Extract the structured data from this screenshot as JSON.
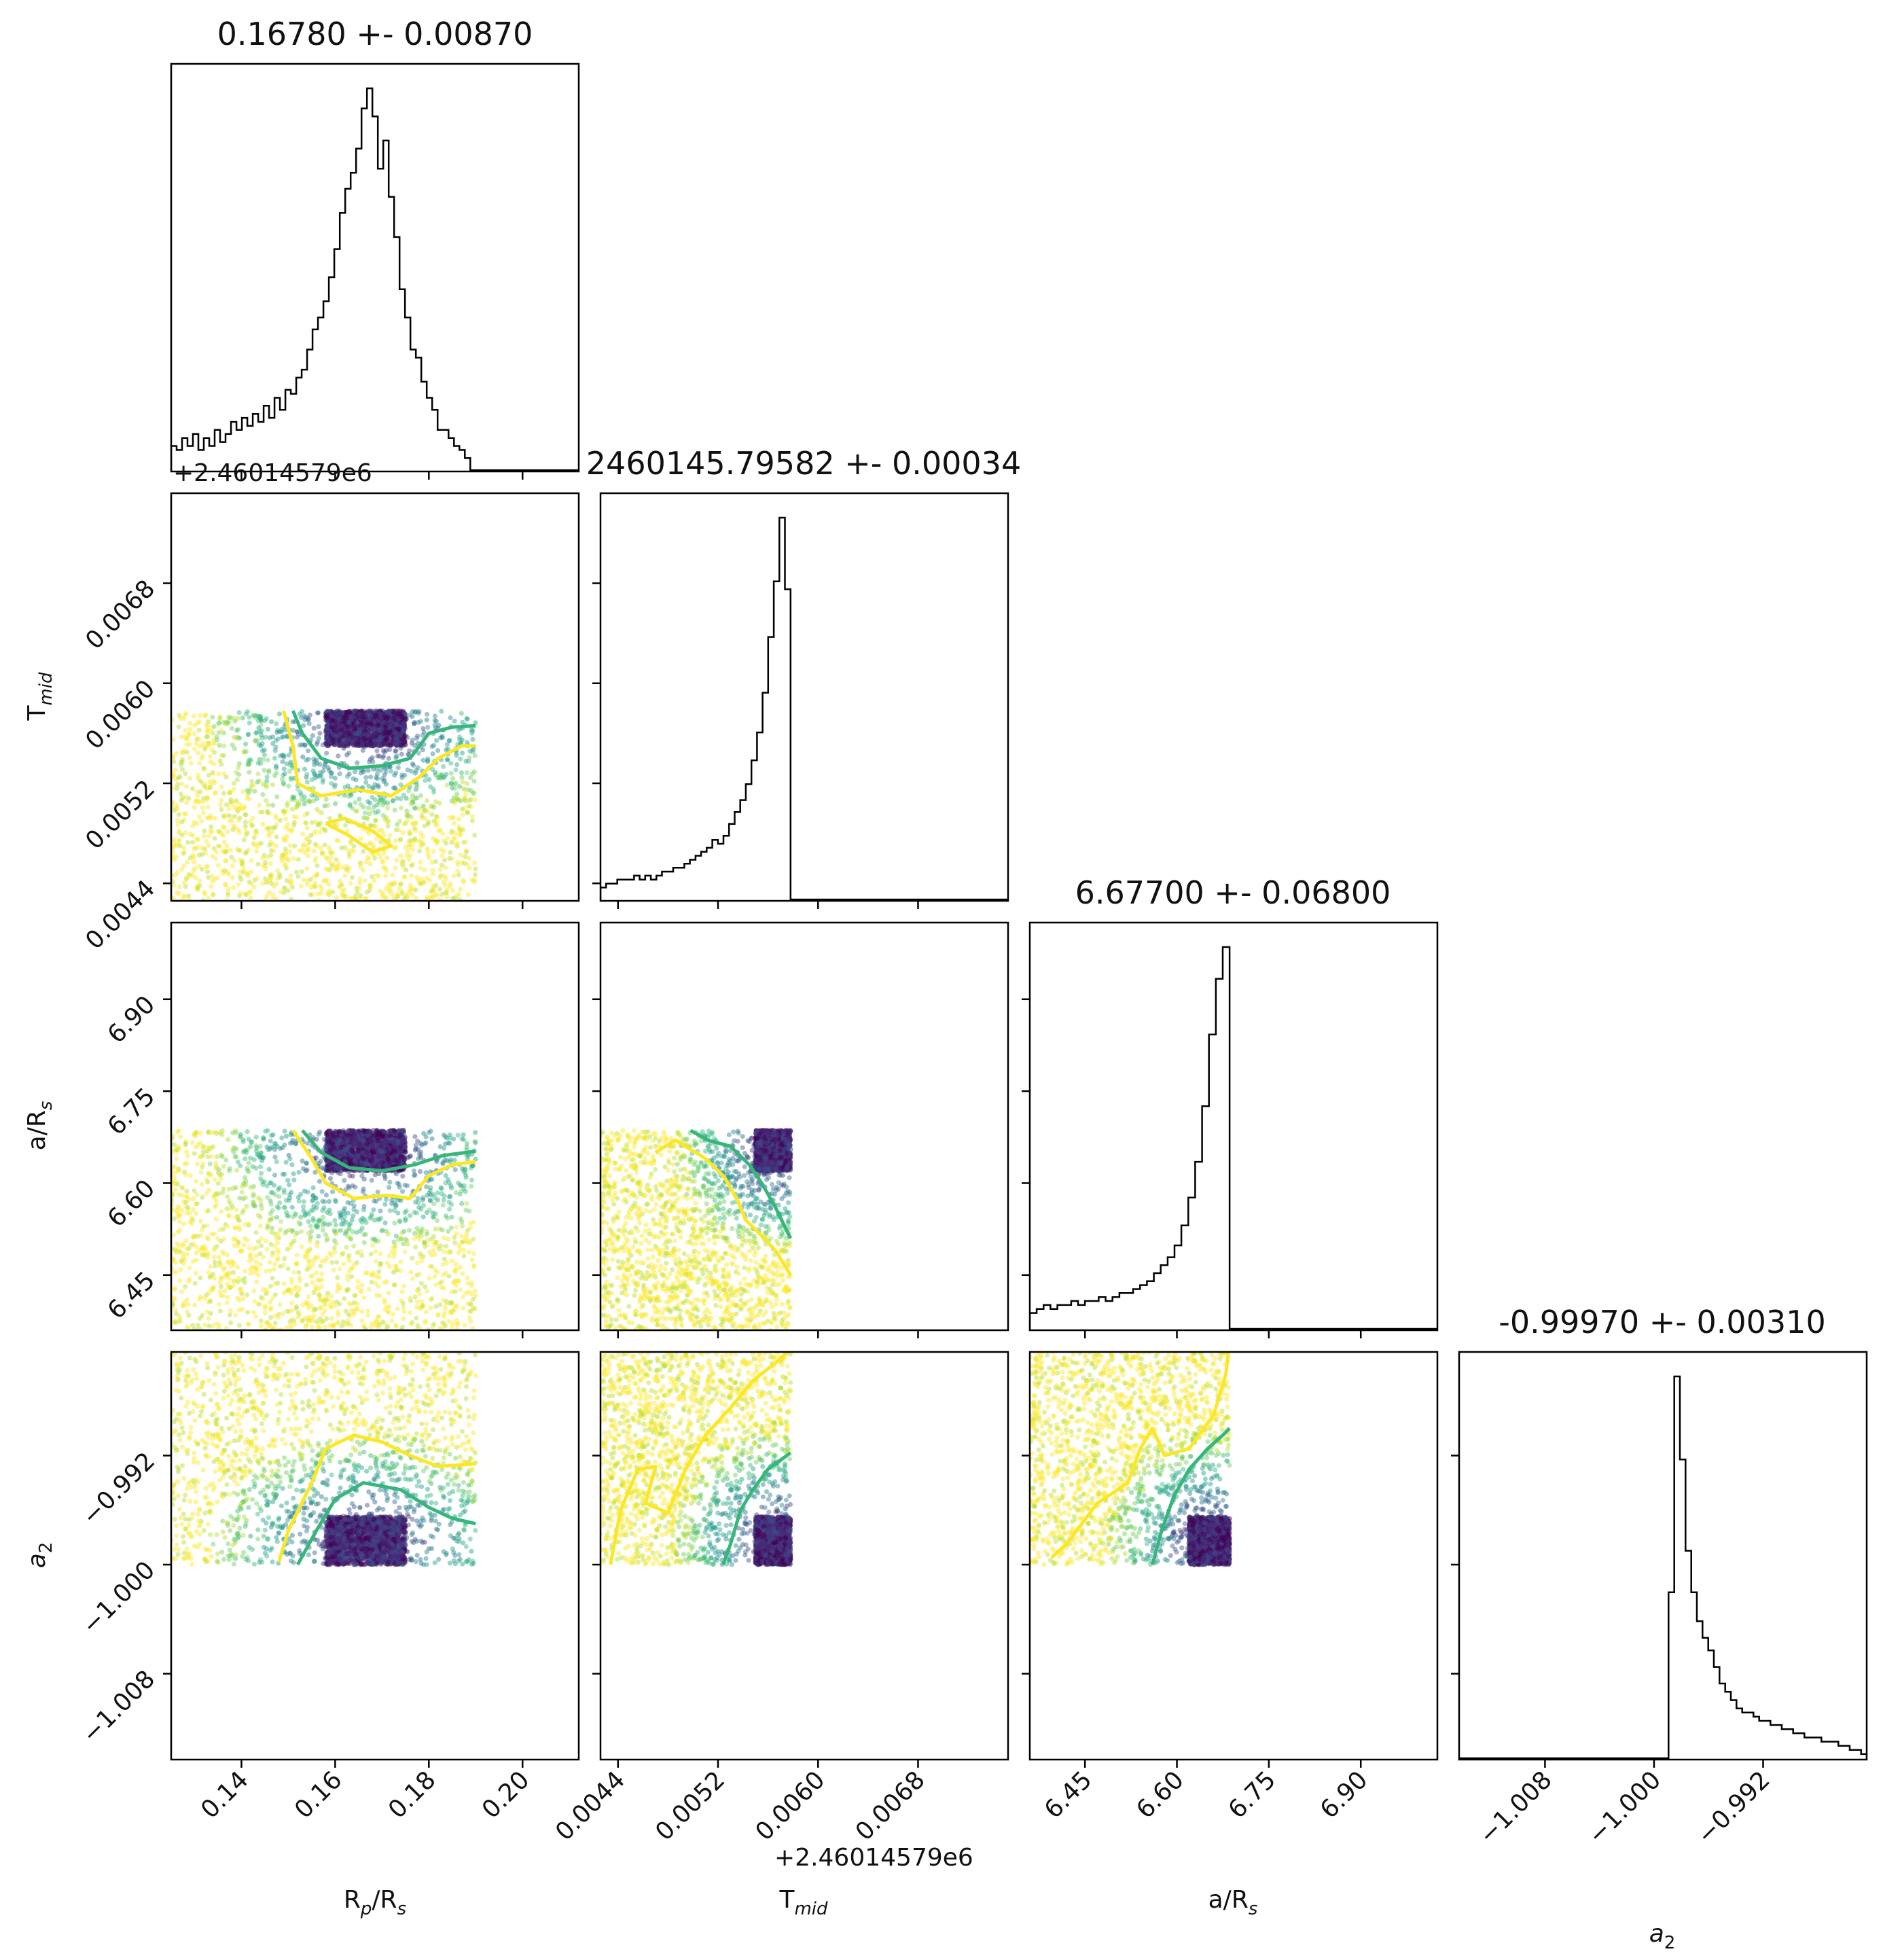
{
  "chart_data": {
    "type": "corner",
    "parameters": [
      "R_p/R_s",
      "T_mid",
      "a/R_s",
      "a_2"
    ],
    "axis_labels": {
      "rp": {
        "base": "R",
        "sub": "p",
        "post": "/R",
        "sub2": "s"
      },
      "tmid": {
        "base": "T",
        "sub": "mid",
        "post": "",
        "sub2": ""
      },
      "ars": {
        "base": "a/R",
        "sub": "s",
        "post": "",
        "sub2": ""
      },
      "a2": {
        "base": "a",
        "sub": "2",
        "post": "",
        "sub2": ""
      }
    },
    "titles": [
      "0.16780 +- 0.00870",
      "2460145.79582 +- 0.00034",
      "6.67700 +- 0.06800",
      "-0.99970 +- 0.00310"
    ],
    "offset_text": "+2.46014579e6",
    "ranges": {
      "rp": [
        0.125,
        0.212
      ],
      "tmid": [
        0.00426,
        0.00752
      ],
      "ars": [
        6.36,
        7.025
      ],
      "a2": [
        -1.0143,
        -0.9844
      ]
    },
    "ticks": {
      "rp": [
        0.14,
        0.16,
        0.18,
        0.2
      ],
      "tmid": [
        0.0044,
        0.0052,
        0.006,
        0.0068
      ],
      "ars": [
        6.45,
        6.6,
        6.75,
        6.9
      ],
      "a2": [
        -1.008,
        -1.0,
        -0.992
      ]
    },
    "tick_labels": {
      "rp": [
        "0.14",
        "0.16",
        "0.18",
        "0.20"
      ],
      "tmid": [
        "0.0044",
        "0.0052",
        "0.0060",
        "0.0068"
      ],
      "ars": [
        "6.45",
        "6.60",
        "6.75",
        "6.90"
      ],
      "a2": [
        "−1.008",
        "−1.000",
        "−0.992"
      ]
    },
    "histograms": {
      "rp": {
        "bin_start": 0.125,
        "bin_end": 0.19,
        "heights": [
          0.06,
          0.05,
          0.08,
          0.06,
          0.09,
          0.05,
          0.08,
          0.06,
          0.1,
          0.07,
          0.09,
          0.12,
          0.1,
          0.13,
          0.11,
          0.14,
          0.12,
          0.16,
          0.13,
          0.18,
          0.15,
          0.2,
          0.19,
          0.23,
          0.25,
          0.3,
          0.35,
          0.38,
          0.42,
          0.48,
          0.55,
          0.64,
          0.7,
          0.74,
          0.8,
          0.9,
          0.95,
          0.88,
          0.75,
          0.82,
          0.68,
          0.58,
          0.45,
          0.38,
          0.3,
          0.28,
          0.22,
          0.18,
          0.15,
          0.1,
          0.1,
          0.08,
          0.06,
          0.05,
          0.03,
          0.0
        ]
      },
      "tmid": {
        "bin_start": 0.00426,
        "bin_end": 0.00578,
        "heights": [
          0.03,
          0.04,
          0.04,
          0.05,
          0.05,
          0.05,
          0.06,
          0.05,
          0.06,
          0.05,
          0.06,
          0.07,
          0.07,
          0.08,
          0.08,
          0.09,
          0.1,
          0.11,
          0.12,
          0.13,
          0.15,
          0.14,
          0.16,
          0.19,
          0.22,
          0.25,
          0.29,
          0.35,
          0.42,
          0.52,
          0.66,
          0.8,
          0.96,
          0.78
        ]
      },
      "ars": {
        "bin_start": 6.36,
        "bin_end": 6.686,
        "heights": [
          0.04,
          0.05,
          0.06,
          0.05,
          0.06,
          0.06,
          0.07,
          0.06,
          0.07,
          0.07,
          0.08,
          0.07,
          0.08,
          0.09,
          0.09,
          0.1,
          0.11,
          0.12,
          0.14,
          0.16,
          0.18,
          0.21,
          0.26,
          0.33,
          0.42,
          0.56,
          0.74,
          0.88,
          0.96
        ]
      },
      "a2": {
        "bin_start": -1.0143,
        "bin_end": -0.9844,
        "heights": [
          0.0,
          0.0,
          0.0,
          0.0,
          0.0,
          0.0,
          0.0,
          0.0,
          0.0,
          0.0,
          0.0,
          0.0,
          0.0,
          0.0,
          0.0,
          0.0,
          0.0,
          0.0,
          0.0,
          0.0,
          0.0,
          0.0,
          0.0,
          0.0,
          0.0,
          0.0,
          0.0,
          0.0,
          0.0,
          0.0,
          0.0,
          0.0,
          0.0,
          0.0,
          0.0,
          0.0,
          0.0,
          0.4,
          0.92,
          0.72,
          0.5,
          0.4,
          0.33,
          0.29,
          0.26,
          0.22,
          0.18,
          0.16,
          0.14,
          0.12,
          0.11,
          0.11,
          0.1,
          0.09,
          0.09,
          0.08,
          0.08,
          0.07,
          0.07,
          0.06,
          0.06,
          0.05,
          0.05,
          0.05,
          0.04,
          0.04,
          0.04,
          0.03,
          0.03,
          0.02,
          0.02,
          0.01
        ]
      }
    },
    "scatter_style": {
      "colormap": [
        "#fde725",
        "#b5de2b",
        "#6ece58",
        "#35b779",
        "#1f9e89",
        "#26828e",
        "#31688e",
        "#3e4989",
        "#482878",
        "#440154"
      ],
      "contour_colors": [
        "#35b779",
        "#fde725"
      ]
    }
  }
}
